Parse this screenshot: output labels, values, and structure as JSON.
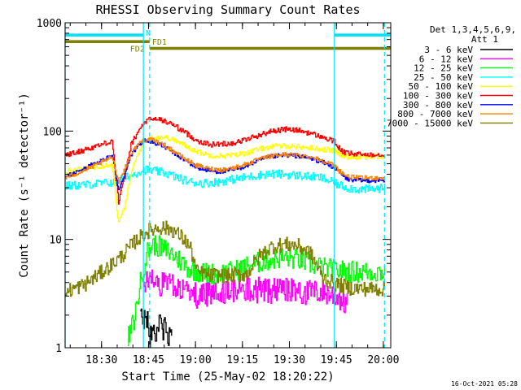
{
  "chart_data": {
    "type": "line",
    "title": "RHESSI Observing Summary Count Rates",
    "xlabel": "Start Time (25-May-02 18:20:22)",
    "ylabel": "Count Rate (s⁻¹ detector⁻¹)",
    "yscale": "log",
    "ylim": [
      1,
      1000
    ],
    "xlim_minutes": [
      -2,
      102
    ],
    "x_ticks": [
      "18:30",
      "18:45",
      "19:00",
      "19:15",
      "19:30",
      "19:45",
      "20:00"
    ],
    "y_ticks": [
      "1",
      "10",
      "100",
      "1000"
    ],
    "legend_header": [
      "Det 1,3,4,5,6,9,",
      "Att 1"
    ],
    "footer_date": "16-Oct-2021 05:28",
    "flags": [
      {
        "label": "N",
        "color": "#00e0ff",
        "y": 770,
        "segments": [
          [
            -2,
            23
          ],
          [
            84,
            102
          ]
        ]
      },
      {
        "label": "FD1",
        "color": "#808000",
        "y": 670,
        "segments": [
          [
            -2,
            25
          ]
        ]
      },
      {
        "label": "FD2",
        "color": "#808000",
        "y": 580,
        "segments": [
          [
            25,
            102
          ]
        ]
      }
    ],
    "vlines": [
      {
        "x": -2,
        "style": "solid",
        "color": "#00e0ff"
      },
      {
        "x": 23,
        "style": "solid",
        "color": "#00e0ff"
      },
      {
        "x": 25,
        "style": "dashed",
        "color": "#00e0ff"
      },
      {
        "x": 84,
        "style": "solid",
        "color": "#00e0ff"
      },
      {
        "x": 100,
        "style": "dashed",
        "color": "#00e0ff"
      }
    ],
    "series": [
      {
        "name": "3 - 6 keV",
        "color": "#000000",
        "noise": 0.12,
        "x": [
          22,
          23,
          24,
          25,
          26,
          27,
          28,
          29,
          30,
          31,
          32
        ],
        "y": [
          2.6,
          1.6,
          2.0,
          1.2,
          1.8,
          1.4,
          1.9,
          1.3,
          1.8,
          1.2,
          1.6
        ]
      },
      {
        "name": "6 - 12 keV",
        "color": "#ff00ff",
        "noise": 0.12,
        "x": [
          23,
          25,
          28,
          32,
          36,
          40,
          45,
          50,
          55,
          60,
          65,
          70,
          75,
          80,
          83,
          85,
          88
        ],
        "y": [
          3.6,
          4.6,
          3.8,
          3.6,
          3.4,
          3.0,
          3.2,
          3.3,
          3.5,
          3.4,
          3.3,
          3.4,
          3.2,
          3.3,
          3.1,
          3.0,
          2.5
        ]
      },
      {
        "name": "12 - 25 keV",
        "color": "#00ff00",
        "noise": 0.1,
        "x": [
          18,
          20,
          22,
          24,
          26,
          28,
          30,
          32,
          35,
          38,
          42,
          47,
          52,
          57,
          62,
          67,
          72,
          76,
          80,
          84,
          88,
          92,
          96,
          100
        ],
        "y": [
          1.2,
          1.8,
          4.0,
          7.5,
          9.0,
          8.6,
          8.0,
          7.4,
          6.2,
          5.3,
          4.9,
          4.8,
          5.1,
          5.8,
          6.4,
          6.8,
          6.6,
          6.0,
          5.5,
          5.2,
          5.1,
          5.0,
          5.0,
          5.0
        ]
      },
      {
        "name": "25 - 50 keV",
        "color": "#00ffff",
        "noise": 0.04,
        "x": [
          -2,
          5,
          10,
          14,
          16,
          18,
          20,
          22,
          24,
          26,
          28,
          30,
          32,
          35,
          38,
          42,
          47,
          52,
          57,
          62,
          67,
          72,
          76,
          80,
          84,
          88,
          92,
          96,
          100
        ],
        "y": [
          31,
          32,
          33,
          34,
          36,
          38,
          40,
          43,
          44,
          43,
          42,
          41,
          39,
          36,
          34,
          33,
          34,
          36,
          38,
          40,
          40,
          39,
          38,
          37,
          33,
          30,
          29,
          29,
          30
        ]
      },
      {
        "name": "50 - 100 keV",
        "color": "#ffff00",
        "noise": 0.025,
        "x": [
          -2,
          2,
          6,
          10,
          13,
          15,
          17,
          19,
          21,
          23,
          25,
          27,
          29,
          31,
          33,
          36,
          40,
          44,
          48,
          52,
          56,
          60,
          64,
          68,
          72,
          76,
          80,
          84,
          86,
          88,
          92,
          96,
          100
        ],
        "y": [
          42,
          44,
          46,
          48,
          50,
          14,
          20,
          40,
          60,
          78,
          85,
          88,
          88,
          86,
          82,
          74,
          65,
          60,
          59,
          60,
          63,
          68,
          72,
          73,
          72,
          70,
          68,
          66,
          60,
          58,
          58,
          58,
          58
        ]
      },
      {
        "name": "100 - 300 keV",
        "color": "#ff0000",
        "noise": 0.025,
        "x": [
          -2,
          2,
          6,
          10,
          13,
          15,
          17,
          19,
          21,
          23,
          25,
          27,
          29,
          31,
          33,
          36,
          40,
          44,
          48,
          52,
          56,
          60,
          64,
          68,
          72,
          76,
          80,
          84,
          86,
          88,
          92,
          96,
          100
        ],
        "y": [
          60,
          64,
          70,
          76,
          82,
          22,
          38,
          75,
          95,
          118,
          128,
          130,
          125,
          120,
          112,
          98,
          82,
          75,
          76,
          78,
          84,
          92,
          100,
          104,
          102,
          96,
          88,
          80,
          66,
          62,
          61,
          61,
          61
        ]
      },
      {
        "name": "300 - 800 keV",
        "color": "#0000ff",
        "noise": 0.02,
        "x": [
          -2,
          2,
          6,
          10,
          13,
          15,
          17,
          19,
          21,
          23,
          25,
          27,
          29,
          31,
          33,
          36,
          40,
          44,
          48,
          52,
          56,
          60,
          64,
          68,
          72,
          76,
          80,
          84,
          86,
          88,
          92,
          96,
          100
        ],
        "y": [
          38,
          42,
          48,
          54,
          60,
          28,
          40,
          60,
          72,
          82,
          80,
          77,
          73,
          68,
          62,
          54,
          46,
          43,
          42,
          44,
          48,
          54,
          58,
          60,
          59,
          56,
          52,
          46,
          40,
          36,
          35,
          35,
          35
        ]
      },
      {
        "name": "800 - 7000 keV",
        "color": "#ff8000",
        "noise": 0.02,
        "x": [
          -2,
          2,
          6,
          10,
          13,
          15,
          17,
          19,
          21,
          23,
          25,
          27,
          29,
          31,
          33,
          36,
          40,
          44,
          48,
          52,
          56,
          60,
          64,
          68,
          72,
          76,
          80,
          84,
          86,
          88,
          92,
          96,
          100
        ],
        "y": [
          37,
          41,
          46,
          52,
          58,
          34,
          45,
          62,
          74,
          84,
          84,
          80,
          76,
          70,
          64,
          56,
          48,
          45,
          44,
          46,
          50,
          55,
          59,
          61,
          60,
          58,
          54,
          48,
          42,
          38,
          37,
          37,
          37
        ]
      },
      {
        "name": "7000 - 15000 keV",
        "color": "#808000",
        "noise": 0.07,
        "x": [
          -2,
          4,
          8,
          12,
          16,
          20,
          24,
          28,
          32,
          36,
          38,
          40,
          44,
          50,
          56,
          60,
          64,
          68,
          72,
          76,
          78,
          80,
          84,
          88,
          92,
          96,
          100
        ],
        "y": [
          3.3,
          3.8,
          4.6,
          5.6,
          7.0,
          9.4,
          11.8,
          13.0,
          12.4,
          10.0,
          8.2,
          5.0,
          4.7,
          4.6,
          4.8,
          7.0,
          8.6,
          9.0,
          8.8,
          7.6,
          6.0,
          4.5,
          3.9,
          3.6,
          3.5,
          3.5,
          3.5
        ]
      }
    ]
  }
}
